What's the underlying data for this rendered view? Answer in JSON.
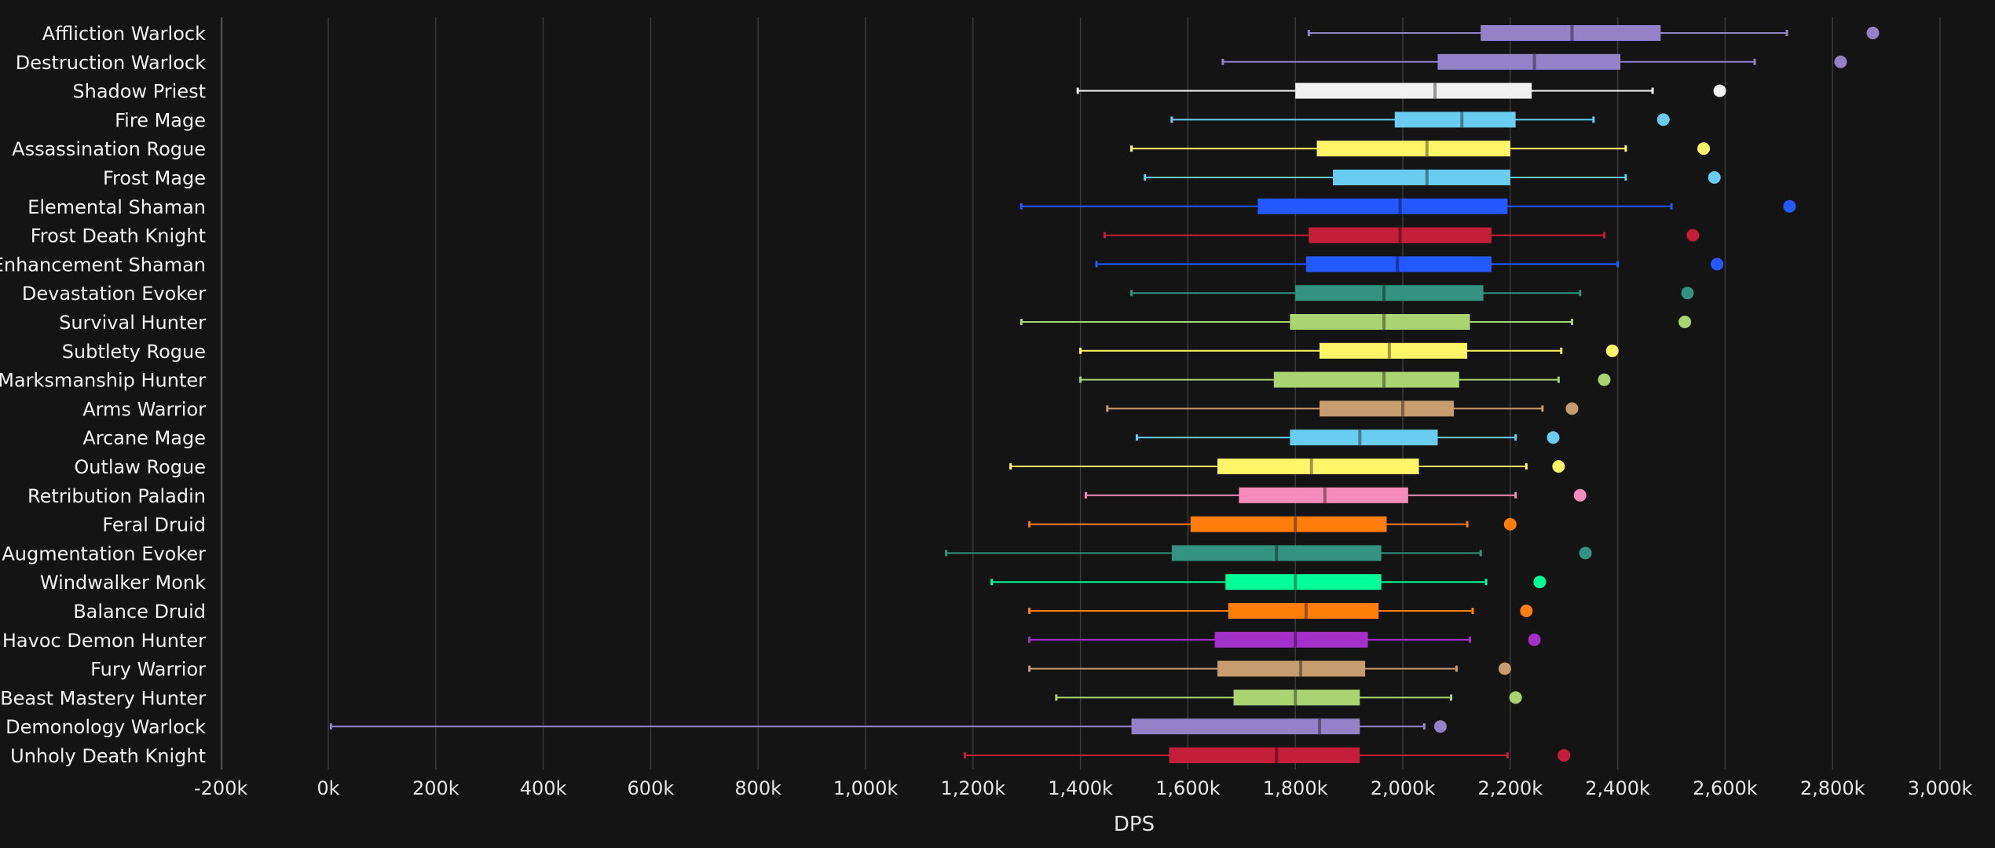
{
  "chart_data": {
    "type": "box",
    "xlabel": "DPS",
    "ylabel": "",
    "xlim": [
      -200,
      3000
    ],
    "x_ticks": [
      -200,
      0,
      200,
      400,
      600,
      800,
      1000,
      1200,
      1400,
      1600,
      1800,
      2000,
      2200,
      2400,
      2600,
      2800,
      3000
    ],
    "x_tick_labels": [
      "-200k",
      "0k",
      "200k",
      "400k",
      "600k",
      "800k",
      "1,000k",
      "1,200k",
      "1,400k",
      "1,600k",
      "1,800k",
      "2,000k",
      "2,200k",
      "2,400k",
      "2,600k",
      "2,800k",
      "3,000k"
    ],
    "value_unit": "thousands",
    "grid": {
      "vertical": true,
      "horizontal": false
    },
    "legend": "none",
    "categories": [
      "Affliction Warlock",
      "Destruction Warlock",
      "Shadow Priest",
      "Fire Mage",
      "Assassination Rogue",
      "Frost Mage",
      "Elemental Shaman",
      "Frost Death Knight",
      "Enhancement Shaman",
      "Devastation Evoker",
      "Survival Hunter",
      "Subtlety Rogue",
      "Marksmanship Hunter",
      "Arms Warrior",
      "Arcane Mage",
      "Outlaw Rogue",
      "Retribution Paladin",
      "Feral Druid",
      "Augmentation Evoker",
      "Windwalker Monk",
      "Balance Druid",
      "Havoc Demon Hunter",
      "Fury Warrior",
      "Beast Mastery Hunter",
      "Demonology Warlock",
      "Unholy Death Knight"
    ],
    "boxes": [
      {
        "min": 1825,
        "q1": 2145,
        "median": 2315,
        "q3": 2480,
        "max": 2715,
        "outlier": 2875,
        "color": "#9482c9"
      },
      {
        "min": 1665,
        "q1": 2065,
        "median": 2245,
        "q3": 2405,
        "max": 2655,
        "outlier": 2815,
        "color": "#9482c9"
      },
      {
        "min": 1395,
        "q1": 1800,
        "median": 2060,
        "q3": 2240,
        "max": 2465,
        "outlier": 2590,
        "color": "#f0f0f0"
      },
      {
        "min": 1570,
        "q1": 1985,
        "median": 2110,
        "q3": 2210,
        "max": 2355,
        "outlier": 2485,
        "color": "#69ccf0"
      },
      {
        "min": 1495,
        "q1": 1840,
        "median": 2045,
        "q3": 2200,
        "max": 2415,
        "outlier": 2560,
        "color": "#fff569"
      },
      {
        "min": 1520,
        "q1": 1870,
        "median": 2045,
        "q3": 2200,
        "max": 2415,
        "outlier": 2580,
        "color": "#69ccf0"
      },
      {
        "min": 1290,
        "q1": 1730,
        "median": 1995,
        "q3": 2195,
        "max": 2500,
        "outlier": 2720,
        "color": "#2459ff"
      },
      {
        "min": 1445,
        "q1": 1825,
        "median": 1995,
        "q3": 2165,
        "max": 2375,
        "outlier": 2540,
        "color": "#c41e3a"
      },
      {
        "min": 1430,
        "q1": 1820,
        "median": 1990,
        "q3": 2165,
        "max": 2400,
        "outlier": 2585,
        "color": "#2459ff"
      },
      {
        "min": 1495,
        "q1": 1800,
        "median": 1965,
        "q3": 2150,
        "max": 2330,
        "outlier": 2530,
        "color": "#33937f"
      },
      {
        "min": 1290,
        "q1": 1790,
        "median": 1965,
        "q3": 2125,
        "max": 2315,
        "outlier": 2525,
        "color": "#aad372"
      },
      {
        "min": 1400,
        "q1": 1845,
        "median": 1975,
        "q3": 2120,
        "max": 2295,
        "outlier": 2390,
        "color": "#fff569"
      },
      {
        "min": 1400,
        "q1": 1760,
        "median": 1965,
        "q3": 2105,
        "max": 2290,
        "outlier": 2375,
        "color": "#aad372"
      },
      {
        "min": 1450,
        "q1": 1845,
        "median": 2000,
        "q3": 2095,
        "max": 2260,
        "outlier": 2315,
        "color": "#c79c6e"
      },
      {
        "min": 1505,
        "q1": 1790,
        "median": 1920,
        "q3": 2065,
        "max": 2210,
        "outlier": 2280,
        "color": "#69ccf0"
      },
      {
        "min": 1270,
        "q1": 1655,
        "median": 1830,
        "q3": 2030,
        "max": 2230,
        "outlier": 2290,
        "color": "#fff569"
      },
      {
        "min": 1410,
        "q1": 1695,
        "median": 1855,
        "q3": 2010,
        "max": 2210,
        "outlier": 2330,
        "color": "#f58cba"
      },
      {
        "min": 1305,
        "q1": 1605,
        "median": 1800,
        "q3": 1970,
        "max": 2120,
        "outlier": 2200,
        "color": "#ff7d0a"
      },
      {
        "min": 1150,
        "q1": 1570,
        "median": 1765,
        "q3": 1960,
        "max": 2145,
        "outlier": 2340,
        "color": "#33937f"
      },
      {
        "min": 1235,
        "q1": 1670,
        "median": 1800,
        "q3": 1960,
        "max": 2155,
        "outlier": 2255,
        "color": "#00ff98"
      },
      {
        "min": 1305,
        "q1": 1675,
        "median": 1820,
        "q3": 1955,
        "max": 2130,
        "outlier": 2230,
        "color": "#ff7d0a"
      },
      {
        "min": 1305,
        "q1": 1650,
        "median": 1800,
        "q3": 1935,
        "max": 2125,
        "outlier": 2245,
        "color": "#a330c9"
      },
      {
        "min": 1305,
        "q1": 1655,
        "median": 1810,
        "q3": 1930,
        "max": 2100,
        "outlier": 2190,
        "color": "#c79c6e"
      },
      {
        "min": 1355,
        "q1": 1685,
        "median": 1800,
        "q3": 1920,
        "max": 2090,
        "outlier": 2210,
        "color": "#aad372"
      },
      {
        "min": 5,
        "q1": 1495,
        "median": 1845,
        "q3": 1920,
        "max": 2040,
        "outlier": 2070,
        "color": "#9482c9"
      },
      {
        "min": 1185,
        "q1": 1565,
        "median": 1765,
        "q3": 1920,
        "max": 2195,
        "outlier": 2300,
        "color": "#c41e3a"
      }
    ]
  }
}
